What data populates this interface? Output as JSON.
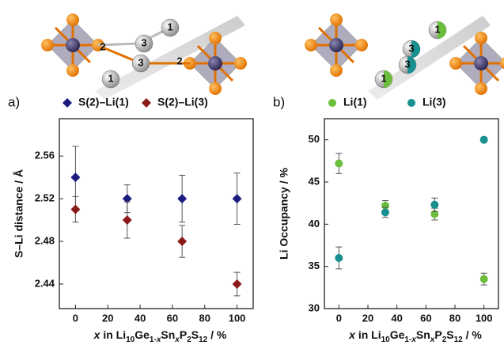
{
  "structure_labels": [
    [
      "2",
      "3",
      "3",
      "1",
      "2",
      "1"
    ],
    [
      "1",
      "3",
      "3",
      "1"
    ]
  ],
  "chart_data": [
    {
      "type": "scatter",
      "panel": "a)",
      "ylabel": "S–Li distance / Å",
      "xlabel": [
        {
          "t": "x",
          "italic": true
        },
        {
          "t": " in Li"
        },
        {
          "t": "10",
          "sub": true
        },
        {
          "t": "Ge"
        },
        {
          "t": "1-",
          "sub": true
        },
        {
          "t": "x",
          "sub": true,
          "italic": true
        },
        {
          "t": "Sn"
        },
        {
          "t": "x",
          "sub": true,
          "italic": true
        },
        {
          "t": "P"
        },
        {
          "t": "2",
          "sub": true
        },
        {
          "t": "S"
        },
        {
          "t": "12",
          "sub": true
        },
        {
          "t": " / %"
        }
      ],
      "x": [
        0,
        32,
        66,
        100
      ],
      "xlim": [
        -10,
        110
      ],
      "xticks": [
        0,
        20,
        40,
        60,
        80,
        100
      ],
      "ylim": [
        2.417,
        2.595
      ],
      "yticks": [
        2.44,
        2.48,
        2.52,
        2.56
      ],
      "marker": "diamond",
      "series": [
        {
          "name": "S(2)–Li(1)",
          "color": "#1c1c80",
          "values": [
            2.54,
            2.52,
            2.52,
            2.52
          ],
          "errors": [
            0.029,
            0.013,
            0.022,
            0.024
          ]
        },
        {
          "name": "S(2)–Li(3)",
          "color": "#8b1a1a",
          "values": [
            2.51,
            2.5,
            2.48,
            2.44
          ],
          "errors": [
            0.012,
            0.017,
            0.015,
            0.011
          ]
        }
      ]
    },
    {
      "type": "scatter",
      "panel": "b)",
      "ylabel": "Li Occupancy / %",
      "xlabel": [
        {
          "t": "x",
          "italic": true
        },
        {
          "t": " in Li"
        },
        {
          "t": "10",
          "sub": true
        },
        {
          "t": "Ge"
        },
        {
          "t": "1-",
          "sub": true
        },
        {
          "t": "x",
          "sub": true,
          "italic": true
        },
        {
          "t": "Sn"
        },
        {
          "t": "x",
          "sub": true,
          "italic": true
        },
        {
          "t": "P"
        },
        {
          "t": "2",
          "sub": true
        },
        {
          "t": "S"
        },
        {
          "t": "12",
          "sub": true
        },
        {
          "t": " / %"
        }
      ],
      "x": [
        0,
        32,
        66,
        100
      ],
      "xlim": [
        -10,
        110
      ],
      "xticks": [
        0,
        20,
        40,
        60,
        80,
        100
      ],
      "ylim": [
        30,
        52.5
      ],
      "yticks": [
        30,
        35,
        40,
        45,
        50
      ],
      "marker": "circle",
      "series": [
        {
          "name": "Li(1)",
          "color": "#6cbf3c",
          "values": [
            47.2,
            42.2,
            41.2,
            33.5
          ],
          "errors": [
            1.2,
            0.6,
            0.7,
            0.7
          ]
        },
        {
          "name": "Li(3)",
          "color": "#17908f",
          "values": [
            36.0,
            41.4,
            42.3,
            50.0
          ],
          "errors": [
            1.3,
            0.6,
            0.8,
            0.2
          ]
        }
      ]
    }
  ]
}
